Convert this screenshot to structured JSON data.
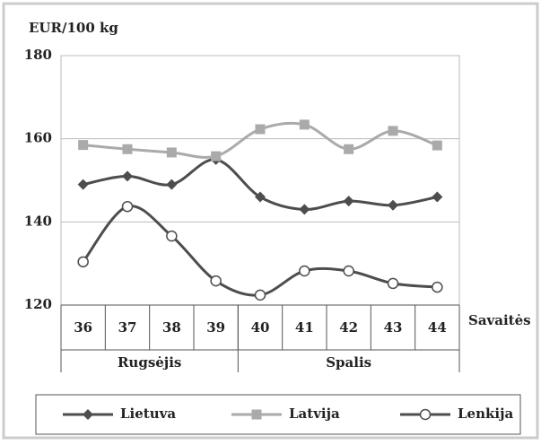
{
  "chart_data": {
    "type": "line",
    "y_label": "EUR/100 kg",
    "x_label": "Savaitės",
    "categories": [
      "36",
      "37",
      "38",
      "39",
      "40",
      "41",
      "42",
      "43",
      "44"
    ],
    "groups": [
      {
        "label": "Rugsėjis",
        "span": 4
      },
      {
        "label": "Spalis",
        "span": 5
      }
    ],
    "series": [
      {
        "name": "Lietuva",
        "color": "#4d4d4d",
        "marker": "diamond",
        "values": [
          149,
          151,
          149,
          155,
          146,
          143,
          145,
          144,
          146
        ]
      },
      {
        "name": "Latvija",
        "color": "#aaaaaa",
        "marker": "square",
        "values": [
          158.5,
          157.5,
          156.7,
          155.8,
          162.3,
          163.4,
          157.5,
          161.9,
          158.4
        ]
      },
      {
        "name": "Lenkija",
        "color": "#4d4d4d",
        "marker": "circle",
        "values": [
          130.4,
          143.7,
          136.6,
          125.8,
          122.4,
          128.2,
          128.2,
          125.2,
          124.3
        ]
      }
    ],
    "ylim": [
      120,
      180
    ],
    "yticks": [
      120,
      140,
      160,
      180
    ],
    "grid": true,
    "legend": "bottom"
  }
}
